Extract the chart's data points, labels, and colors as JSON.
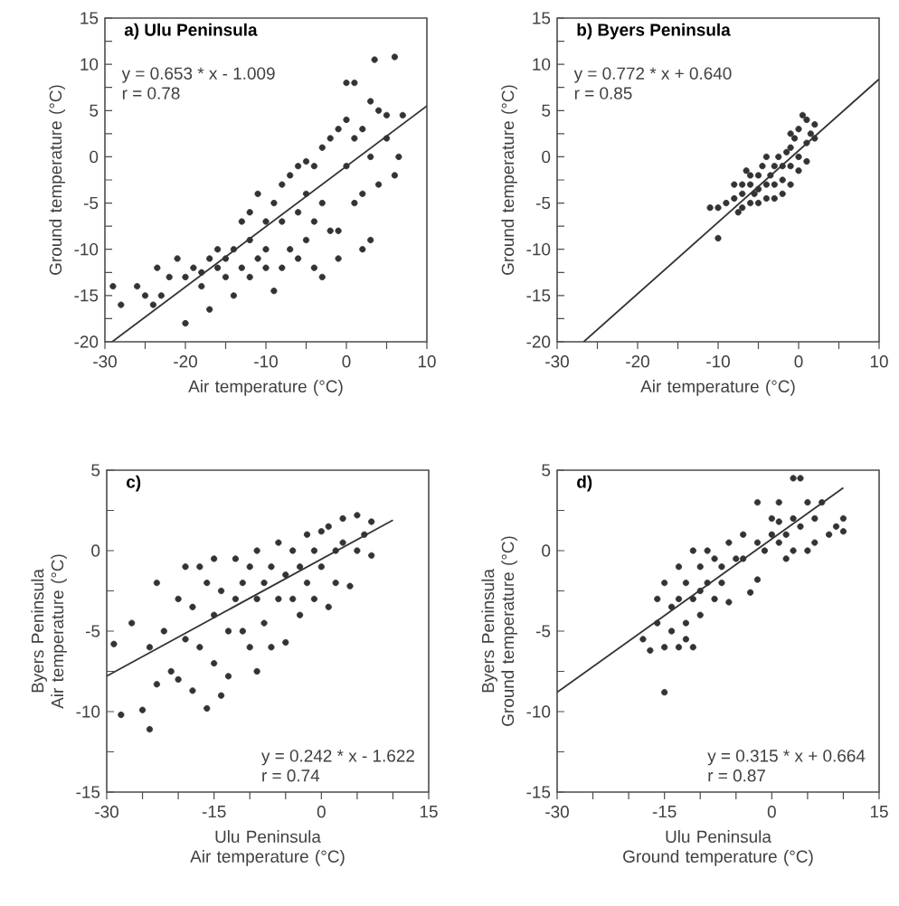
{
  "chart_data": [
    {
      "type": "scatter",
      "title": "a) Ulu Peninsula",
      "xlabel": "Air temperature (°C)",
      "ylabel": "Ground temperature (°C)",
      "annotations": [
        "y = 0.653 * x - 1.009",
        "r = 0.78"
      ],
      "xlim": [
        -30,
        10
      ],
      "ylim": [
        -20,
        15
      ],
      "xticks": [
        -30,
        {
          "value": -25,
          "label": null
        },
        -20,
        {
          "value": -15,
          "label": null
        },
        -10,
        {
          "value": -5,
          "label": null
        },
        0,
        {
          "value": 5,
          "label": null
        },
        10
      ],
      "yticks": [
        -20,
        {
          "value": -17.5,
          "label": null
        },
        -15,
        {
          "value": -12.5,
          "label": null
        },
        -10,
        {
          "value": -7.5,
          "label": null
        },
        -5,
        {
          "value": -2.5,
          "label": null
        },
        0,
        {
          "value": 2.5,
          "label": null
        },
        5,
        {
          "value": 7.5,
          "label": null
        },
        10,
        {
          "value": 12.5,
          "label": null
        },
        15
      ],
      "series": [
        {
          "type": "scatter",
          "marker": "circle",
          "color": "#333333",
          "x": [
            -29,
            -28,
            -26,
            -25,
            -24,
            -23.5,
            -23,
            -22,
            -21,
            -20,
            -20,
            -19,
            -18,
            -18,
            -17,
            -17,
            -16,
            -15,
            -15,
            -14,
            -14,
            -13,
            -12,
            -12,
            -11,
            -10,
            -10,
            -9,
            -9,
            -8,
            -8,
            -8,
            -7,
            -7,
            -6,
            -6,
            -6,
            -5,
            -5,
            -5,
            -4,
            -4,
            -4,
            -3,
            -3,
            -3,
            -2,
            -2,
            -1,
            -1,
            -1,
            0,
            0,
            0,
            1,
            1,
            1,
            2,
            2,
            2,
            3,
            3,
            3,
            3.5,
            4,
            4,
            5,
            5,
            6,
            6,
            6.5,
            7,
            -12,
            -11,
            -13,
            -16,
            -10
          ],
          "values": [
            -14,
            -16,
            -14,
            -15,
            -16,
            -12,
            -15,
            -13,
            -11,
            -18,
            -13,
            -12,
            -12.5,
            -14,
            -16.5,
            -11,
            -12,
            -11,
            -13,
            -10,
            -15,
            -12,
            -9,
            -13,
            -11,
            -7,
            -10,
            -5,
            -14.5,
            -3,
            -7,
            -12,
            -2,
            -10,
            -1,
            -6,
            -11,
            -0.5,
            -4,
            -9,
            -1,
            -7,
            -12,
            1,
            -5,
            -13,
            2,
            -8,
            3,
            -8,
            -11,
            4,
            8,
            -1,
            2,
            -5,
            8,
            3,
            -10,
            -4,
            6,
            -9,
            0,
            10.5,
            5,
            -3,
            2,
            4.5,
            10.8,
            -2,
            0,
            4.5,
            -6,
            -4,
            -7,
            -10,
            -12
          ]
        },
        {
          "type": "line",
          "marker": "none",
          "color": "#333333",
          "x": [
            -29.1,
            10
          ],
          "values": [
            -20,
            5.5
          ]
        }
      ]
    },
    {
      "type": "scatter",
      "title": "b) Byers Peninsula",
      "xlabel": "Air temperature (°C)",
      "ylabel": "Ground temperature (°C)",
      "annotations": [
        "y = 0.772 * x + 0.640",
        "r = 0.85"
      ],
      "xlim": [
        -30,
        10
      ],
      "ylim": [
        -20,
        15
      ],
      "xticks": [
        -30,
        {
          "value": -25,
          "label": null
        },
        -20,
        {
          "value": -15,
          "label": null
        },
        -10,
        {
          "value": -5,
          "label": null
        },
        0,
        {
          "value": 5,
          "label": null
        },
        10
      ],
      "yticks": [
        -20,
        {
          "value": -17.5,
          "label": null
        },
        -15,
        {
          "value": -12.5,
          "label": null
        },
        -10,
        {
          "value": -7.5,
          "label": null
        },
        -5,
        {
          "value": -2.5,
          "label": null
        },
        0,
        {
          "value": 2.5,
          "label": null
        },
        5,
        {
          "value": 7.5,
          "label": null
        },
        10,
        {
          "value": 12.5,
          "label": null
        },
        15
      ],
      "series": [
        {
          "type": "scatter",
          "marker": "circle",
          "color": "#333333",
          "x": [
            -11,
            -10,
            -10,
            -9,
            -8,
            -8,
            -7.5,
            -7,
            -7,
            -6.5,
            -6,
            -6,
            -5.5,
            -5,
            -5,
            -5,
            -4.5,
            -4,
            -4,
            -4,
            -3.5,
            -3,
            -3,
            -3,
            -2.5,
            -2,
            -2,
            -2,
            -1.5,
            -1,
            -1,
            -1,
            -0.5,
            0,
            0,
            0,
            0.5,
            1,
            1,
            1.5,
            2,
            2,
            1,
            -1,
            -6,
            -7
          ],
          "values": [
            -5.5,
            -8.8,
            -5.5,
            -5,
            -3,
            -4.5,
            -6,
            -4,
            -5.5,
            -1.5,
            -3,
            -5,
            -4,
            -2,
            -3.5,
            -5,
            -1,
            -3,
            -4.5,
            0,
            -2,
            -1,
            -3,
            -4.5,
            0,
            -1,
            -2.5,
            -4,
            0.5,
            1,
            -1,
            -3,
            2,
            0,
            3,
            -1.5,
            4.5,
            1.5,
            4,
            2.5,
            2,
            3.5,
            -0.5,
            2.5,
            -2,
            -3
          ]
        },
        {
          "type": "line",
          "marker": "none",
          "color": "#333333",
          "x": [
            -26.7,
            10
          ],
          "values": [
            -20,
            8.4
          ]
        }
      ]
    },
    {
      "type": "scatter",
      "title": "c)",
      "xlabel": "Ulu Peninsula Air temperature (°C)",
      "ylabel": "Byers Peninsula Air temperature (°C)",
      "annotations": [
        "y = 0.242 * x - 1.622",
        "r = 0.74"
      ],
      "xlim": [
        -30,
        15
      ],
      "ylim": [
        -15,
        5
      ],
      "xticks": [
        -30,
        {
          "value": -25,
          "label": null
        },
        {
          "value": -20,
          "label": null
        },
        -15,
        {
          "value": -10,
          "label": null
        },
        {
          "value": -5,
          "label": null
        },
        0,
        {
          "value": 5,
          "label": null
        },
        {
          "value": 10,
          "label": null
        },
        15
      ],
      "yticks": [
        -15,
        {
          "value": -12.5,
          "label": null
        },
        -10,
        {
          "value": -7.5,
          "label": null
        },
        -5,
        {
          "value": -2.5,
          "label": null
        },
        0,
        {
          "value": 2.5,
          "label": null
        },
        5
      ],
      "series": [
        {
          "type": "scatter",
          "marker": "circle",
          "color": "#333333",
          "x": [
            -29,
            -28,
            -26.5,
            -25,
            -24,
            -24,
            -23,
            -23,
            -22,
            -21,
            -20,
            -20,
            -19,
            -19,
            -18,
            -18,
            -17,
            -16,
            -16,
            -15,
            -15,
            -15,
            -14,
            -13,
            -13,
            -12,
            -12,
            -11,
            -10,
            -10,
            -9,
            -9,
            -9,
            -8,
            -8,
            -7,
            -7,
            -6,
            -6,
            -5,
            -5,
            -4,
            -4,
            -3,
            -3,
            -2,
            -2,
            -1,
            -1,
            0,
            0,
            1,
            1,
            2,
            2,
            3,
            3,
            4,
            5,
            5,
            6,
            7,
            7,
            -17,
            -11,
            -14
          ],
          "values": [
            -5.8,
            -10.2,
            -4.5,
            -9.9,
            -11.1,
            -6,
            -8.3,
            -2,
            -5,
            -7.5,
            -3,
            -8,
            -1,
            -5.5,
            -8.7,
            -3.5,
            -6,
            -2,
            -9.8,
            -0.5,
            -4,
            -7,
            -2.5,
            -5,
            -7.8,
            -0.5,
            -3,
            -5,
            -1,
            -6,
            0,
            -3,
            -7.5,
            -2,
            -4.5,
            -1,
            -6,
            0.5,
            -3,
            -1.5,
            -5.7,
            0,
            -3,
            -1,
            -4,
            1,
            -2,
            0,
            -3,
            1.2,
            -1,
            1.5,
            -3.5,
            0,
            -2,
            2,
            0.5,
            -2.2,
            2.2,
            0,
            1,
            -0.3,
            1.8,
            -1,
            -2,
            -9
          ]
        },
        {
          "type": "line",
          "marker": "none",
          "color": "#333333",
          "x": [
            -30,
            10
          ],
          "values": [
            -7.8,
            1.9
          ]
        }
      ]
    },
    {
      "type": "scatter",
      "title": "d)",
      "xlabel": "Ulu Peninsula Ground temperature (°C)",
      "ylabel": "Byers Peninsula Ground temperature (°C)",
      "annotations": [
        "y = 0.315 * x + 0.664",
        "r = 0.87"
      ],
      "xlim": [
        -30,
        15
      ],
      "ylim": [
        -15,
        5
      ],
      "xticks": [
        -30,
        {
          "value": -25,
          "label": null
        },
        {
          "value": -20,
          "label": null
        },
        -15,
        {
          "value": -10,
          "label": null
        },
        {
          "value": -5,
          "label": null
        },
        0,
        {
          "value": 5,
          "label": null
        },
        {
          "value": 10,
          "label": null
        },
        15
      ],
      "yticks": [
        -15,
        {
          "value": -12.5,
          "label": null
        },
        -10,
        {
          "value": -7.5,
          "label": null
        },
        -5,
        {
          "value": -2.5,
          "label": null
        },
        0,
        {
          "value": 2.5,
          "label": null
        },
        5
      ],
      "series": [
        {
          "type": "scatter",
          "marker": "circle",
          "color": "#333333",
          "x": [
            -18,
            -17,
            -16,
            -16,
            -15,
            -15,
            -15,
            -14,
            -14,
            -13,
            -13,
            -12,
            -12,
            -11,
            -11,
            -11,
            -10,
            -10,
            -9,
            -9,
            -8,
            -8,
            -7,
            -6,
            -6,
            -5,
            -4,
            -4,
            -3,
            -2,
            -2,
            -2,
            -1,
            0,
            0,
            1,
            1,
            2,
            2,
            3,
            3,
            4,
            4,
            5,
            5,
            6,
            7,
            8,
            9,
            10,
            10,
            -13,
            -12,
            -10,
            -7,
            1,
            3,
            6
          ],
          "values": [
            -5.5,
            -6.2,
            -3,
            -4.5,
            -8.8,
            -6,
            -2,
            -5,
            -3.5,
            -1,
            -6,
            -2,
            -4.5,
            0,
            -3,
            -6,
            -1,
            -4,
            0,
            -2,
            -0.5,
            -3,
            -1,
            -3.2,
            0.5,
            -0.5,
            1,
            -0.5,
            -2.6,
            3,
            -1.8,
            0.5,
            0,
            1,
            2,
            0.5,
            3,
            1,
            -0.5,
            4.5,
            2,
            4.5,
            1.5,
            3,
            0,
            0.5,
            3,
            1,
            1.5,
            2,
            1.2,
            -3,
            -5.5,
            -2.5,
            -2,
            1.8,
            0,
            2
          ]
        },
        {
          "type": "line",
          "marker": "none",
          "color": "#333333",
          "x": [
            -30,
            10
          ],
          "values": [
            -8.8,
            3.9
          ]
        }
      ]
    }
  ]
}
